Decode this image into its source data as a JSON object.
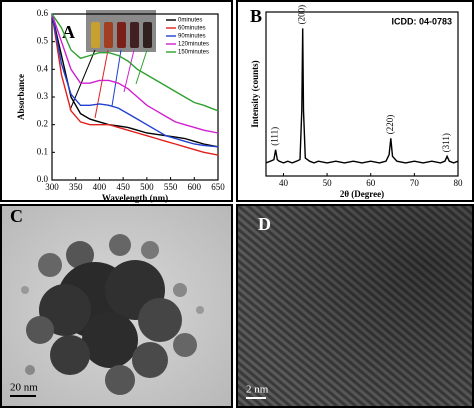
{
  "chart_data": [
    {
      "type": "line",
      "panel": "A",
      "x_label": "Wavelength (nm)",
      "y_label": "Absorbance",
      "x": [
        300,
        320,
        340,
        360,
        380,
        400,
        420,
        440,
        460,
        480,
        500,
        520,
        540,
        560,
        580,
        600,
        620,
        650
      ],
      "xlim": [
        300,
        650
      ],
      "xticks": [
        300,
        350,
        400,
        450,
        500,
        550,
        600,
        650
      ],
      "ylim": [
        0,
        0.6
      ],
      "yticks": [
        {
          "value": 0,
          "label": "0.0"
        },
        0.1,
        0.2,
        0.3,
        0.4,
        0.5,
        0.6
      ],
      "legend": "upper right",
      "series": [
        {
          "name": "0minutes",
          "color": "#000000",
          "values": [
            0.6,
            0.45,
            0.3,
            0.24,
            0.22,
            0.21,
            0.2,
            0.195,
            0.19,
            0.18,
            0.17,
            0.165,
            0.16,
            0.155,
            0.15,
            0.14,
            0.13,
            0.12
          ]
        },
        {
          "name": "60minutes",
          "color": "#e0201e",
          "values": [
            0.6,
            0.38,
            0.25,
            0.21,
            0.2,
            0.2,
            0.2,
            0.19,
            0.18,
            0.17,
            0.16,
            0.15,
            0.14,
            0.13,
            0.12,
            0.11,
            0.1,
            0.09
          ]
        },
        {
          "name": "90minutes",
          "color": "#2040d0",
          "values": [
            0.6,
            0.42,
            0.31,
            0.27,
            0.27,
            0.275,
            0.27,
            0.26,
            0.24,
            0.22,
            0.2,
            0.18,
            0.16,
            0.15,
            0.14,
            0.13,
            0.125,
            0.12
          ]
        },
        {
          "name": "120minutes",
          "color": "#d020d0",
          "values": [
            0.6,
            0.5,
            0.4,
            0.35,
            0.35,
            0.36,
            0.36,
            0.35,
            0.33,
            0.3,
            0.27,
            0.25,
            0.23,
            0.21,
            0.2,
            0.19,
            0.18,
            0.17
          ]
        },
        {
          "name": "150minutes",
          "color": "#30a030",
          "values": [
            0.6,
            0.55,
            0.47,
            0.44,
            0.45,
            0.46,
            0.46,
            0.45,
            0.43,
            0.4,
            0.38,
            0.36,
            0.34,
            0.32,
            0.3,
            0.28,
            0.27,
            0.25
          ]
        }
      ]
    },
    {
      "type": "line",
      "panel": "B",
      "x_label": "2θ (Degree)",
      "y_label": "Intensity (counts)",
      "annotation": "ICDD: 04-0783",
      "color": "#000000",
      "x": [
        36,
        37,
        37.8,
        38.2,
        38.6,
        39,
        40,
        41,
        42,
        43,
        43.8,
        44.2,
        44.4,
        44.6,
        45,
        46,
        47,
        48,
        50,
        52,
        54,
        56,
        58,
        60,
        62,
        63.5,
        64.2,
        64.6,
        65,
        66,
        68,
        70,
        72,
        74,
        76,
        77,
        77.5,
        78,
        79,
        80
      ],
      "values": [
        8,
        9,
        10,
        16,
        10,
        9,
        8,
        9,
        8,
        9,
        10,
        40,
        90,
        40,
        11,
        9,
        8,
        9,
        8,
        9,
        8,
        9,
        8,
        9,
        8,
        9,
        13,
        23,
        12,
        9,
        8,
        9,
        8,
        9,
        8,
        9,
        12,
        9,
        8,
        9
      ],
      "xlim": [
        36,
        80
      ],
      "xticks": [
        40,
        50,
        60,
        70,
        80
      ],
      "ylim": [
        0,
        100
      ],
      "peaks": [
        {
          "text": "(111)",
          "x": 38.2,
          "y": 16
        },
        {
          "text": "(200)",
          "x": 44.4,
          "y": 90
        },
        {
          "text": "(220)",
          "x": 64.6,
          "y": 23
        },
        {
          "text": "(311)",
          "x": 77.5,
          "y": 12
        }
      ]
    }
  ],
  "images": [
    {
      "label": "C",
      "scale_bar": "20 nm"
    },
    {
      "label": "D",
      "scale_bar": "2 nm"
    }
  ]
}
